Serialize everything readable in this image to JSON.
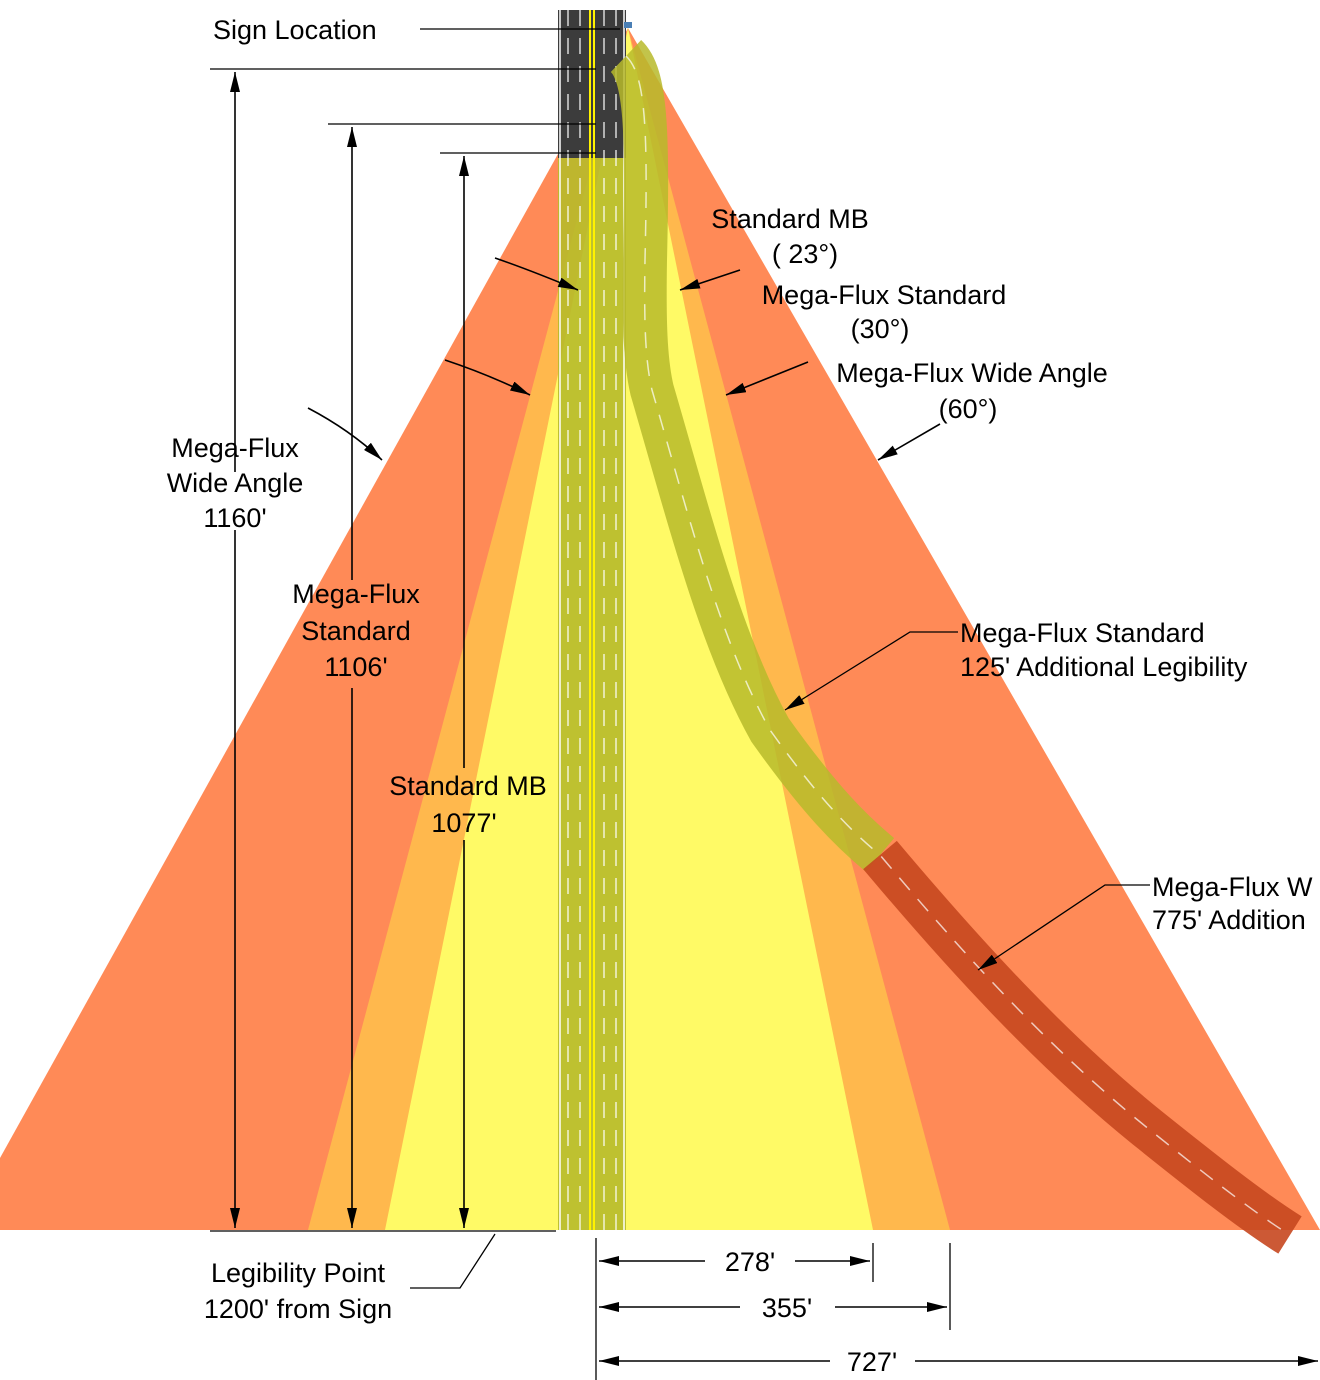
{
  "colors": {
    "wide_angle": "#FF8A57",
    "standard": "#FFB84D",
    "standard_mb": "#FFFA66",
    "road_asphalt": "#3C3C3C",
    "road_green": "#B7BA2A",
    "curve_dark": "#C7471F",
    "center_line": "#FFF200"
  },
  "labels": {
    "sign_location": "Sign Location",
    "angle_mb_name": "Standard MB",
    "angle_mb_value": "( 23°)",
    "angle_mf_std_name": "Mega-Flux Standard",
    "angle_mf_std_value": "(30°)",
    "angle_mf_wide_name": "Mega-Flux Wide Angle",
    "angle_mf_wide_value": "(60°)",
    "dist_wide_line1": "Mega-Flux",
    "dist_wide_line2": "Wide Angle",
    "dist_wide_value": "1160'",
    "dist_std_line1": "Mega-Flux",
    "dist_std_line2": "Standard",
    "dist_std_value": "1106'",
    "dist_mb_line1": "Standard MB",
    "dist_mb_value": "1077'",
    "callout_std_line1": "Mega-Flux Standard",
    "callout_std_line2": "125' Additional Legibility",
    "callout_wide_line1": "Mega-Flux W",
    "callout_wide_line2": "775' Addition",
    "legibility_line1": "Legibility Point",
    "legibility_line2": "1200' from Sign",
    "width_mb": "278'",
    "width_std": "355'",
    "width_wide": "727'"
  }
}
